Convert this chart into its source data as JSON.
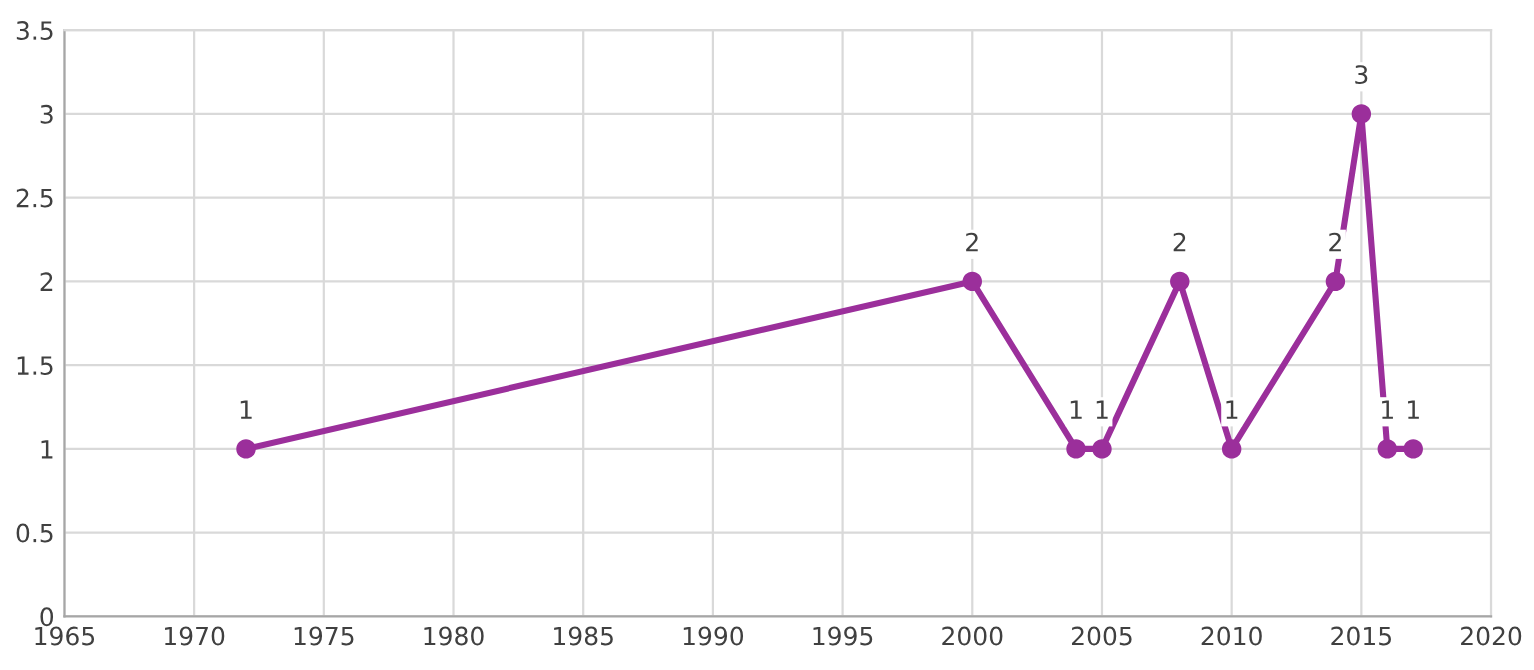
{
  "chart_data": {
    "type": "line",
    "x": [
      1972,
      2000,
      2004,
      2005,
      2008,
      2010,
      2014,
      2015,
      2016,
      2017
    ],
    "series": [
      {
        "color": "#9b2f9b",
        "values": [
          1,
          2,
          1,
          1,
          2,
          1,
          2,
          3,
          1,
          1
        ]
      }
    ],
    "xlim": [
      1965,
      2020
    ],
    "xticks": [
      1965,
      1970,
      1975,
      1980,
      1985,
      1990,
      1995,
      2000,
      2005,
      2010,
      2015,
      2020
    ],
    "ylim": [
      0,
      3.5
    ],
    "yticks": [
      0,
      0.5,
      1,
      1.5,
      2,
      2.5,
      3,
      3.5
    ],
    "grid": true,
    "marker": "circle",
    "line_style": "solid",
    "data_labels": true
  }
}
